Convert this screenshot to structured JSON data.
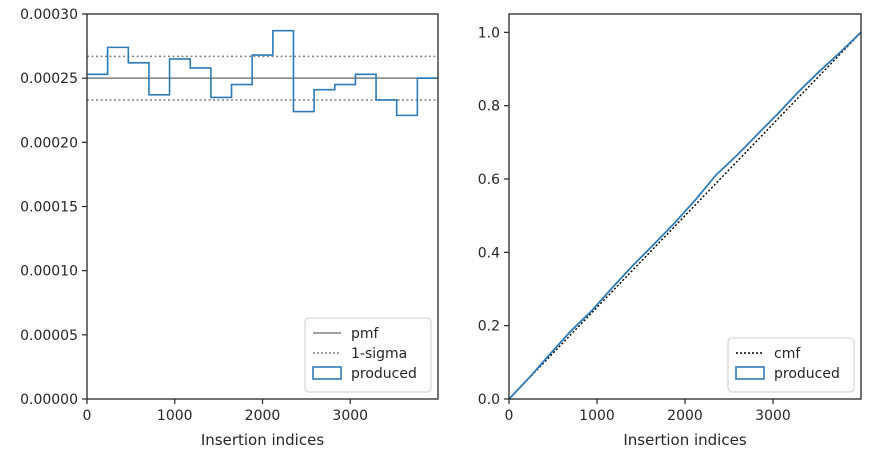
{
  "chart_data": [
    {
      "type": "histogram-step",
      "xlabel": "Insertion indices",
      "ylabel": "",
      "xlim": [
        0,
        4000
      ],
      "ylim": [
        0,
        0.0003
      ],
      "xticks": [
        0,
        1000,
        2000,
        3000
      ],
      "xtick_labels": [
        "0",
        "1000",
        "2000",
        "3000"
      ],
      "yticks": [
        0,
        5e-05,
        0.0001,
        0.00015,
        0.0002,
        0.00025,
        0.0003
      ],
      "ytick_labels": [
        "0.00000",
        "0.00005",
        "0.00010",
        "0.00015",
        "0.00020",
        "0.00025",
        "0.00030"
      ],
      "bin_edges": [
        0,
        235,
        471,
        706,
        941,
        1176,
        1412,
        1647,
        1882,
        2118,
        2353,
        2588,
        2824,
        3059,
        3294,
        3529,
        3765,
        4000
      ],
      "series": [
        {
          "name": "pmf",
          "kind": "hline",
          "value": 0.00025,
          "color": "#808080",
          "style": "solid"
        },
        {
          "name": "1-sigma",
          "kind": "hlines",
          "values": [
            0.000267,
            0.000233
          ],
          "color": "#808080",
          "style": "dotted"
        },
        {
          "name": "produced",
          "kind": "step",
          "color": "#2c7bb6",
          "values": [
            0.000253,
            0.000274,
            0.000262,
            0.000237,
            0.000265,
            0.000258,
            0.000235,
            0.000245,
            0.000268,
            0.000287,
            0.000224,
            0.000241,
            0.000245,
            0.000253,
            0.000233,
            0.000221,
            0.00025
          ]
        }
      ],
      "legend_position": "lower right"
    },
    {
      "type": "line",
      "xlabel": "Insertion indices",
      "ylabel": "",
      "xlim": [
        0,
        4000
      ],
      "ylim": [
        0,
        1.05
      ],
      "xticks": [
        0,
        1000,
        2000,
        3000
      ],
      "xtick_labels": [
        "0",
        "1000",
        "2000",
        "3000"
      ],
      "yticks": [
        0,
        0.2,
        0.4,
        0.6,
        0.8,
        1.0
      ],
      "ytick_labels": [
        "0.0",
        "0.2",
        "0.4",
        "0.6",
        "0.8",
        "1.0"
      ],
      "series": [
        {
          "name": "cmf",
          "color": "#000000",
          "style": "dotted",
          "x": [
            0,
            4000
          ],
          "y": [
            0,
            1
          ]
        },
        {
          "name": "produced",
          "color": "#2c7bb6",
          "style": "solid",
          "x": [
            0,
            235,
            471,
            706,
            941,
            1176,
            1412,
            1647,
            1882,
            2118,
            2353,
            2588,
            2824,
            3059,
            3294,
            3529,
            3765,
            4000
          ],
          "y": [
            0,
            0.0595,
            0.124,
            0.186,
            0.241,
            0.304,
            0.365,
            0.422,
            0.48,
            0.543,
            0.611,
            0.664,
            0.722,
            0.779,
            0.839,
            0.894,
            0.946,
            1.0
          ]
        }
      ],
      "legend_position": "lower right"
    }
  ]
}
